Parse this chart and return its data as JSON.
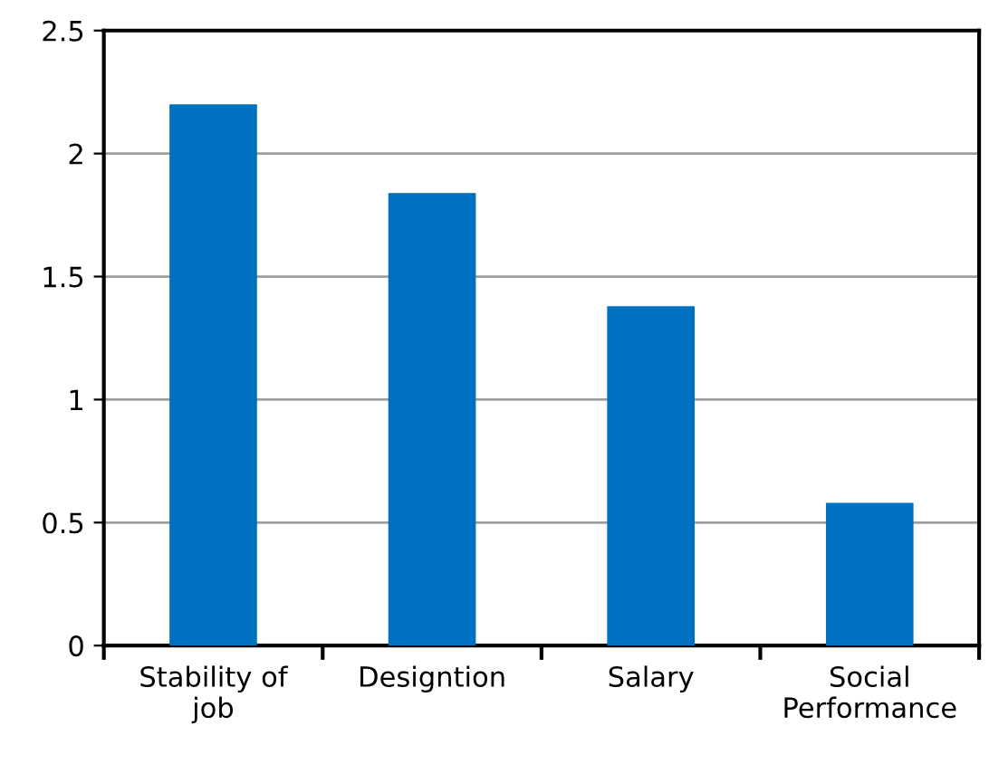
{
  "chart_data": {
    "type": "bar",
    "categories": [
      "Stability of\njob",
      "Designtion",
      "Salary",
      "Social\nPerformance"
    ],
    "values": [
      2.2,
      1.84,
      1.38,
      0.58
    ],
    "color": "#0070c0",
    "ylim": [
      0,
      2.5
    ],
    "yticks": [
      0,
      0.5,
      1,
      1.5,
      2,
      2.5
    ],
    "grid": "y"
  }
}
